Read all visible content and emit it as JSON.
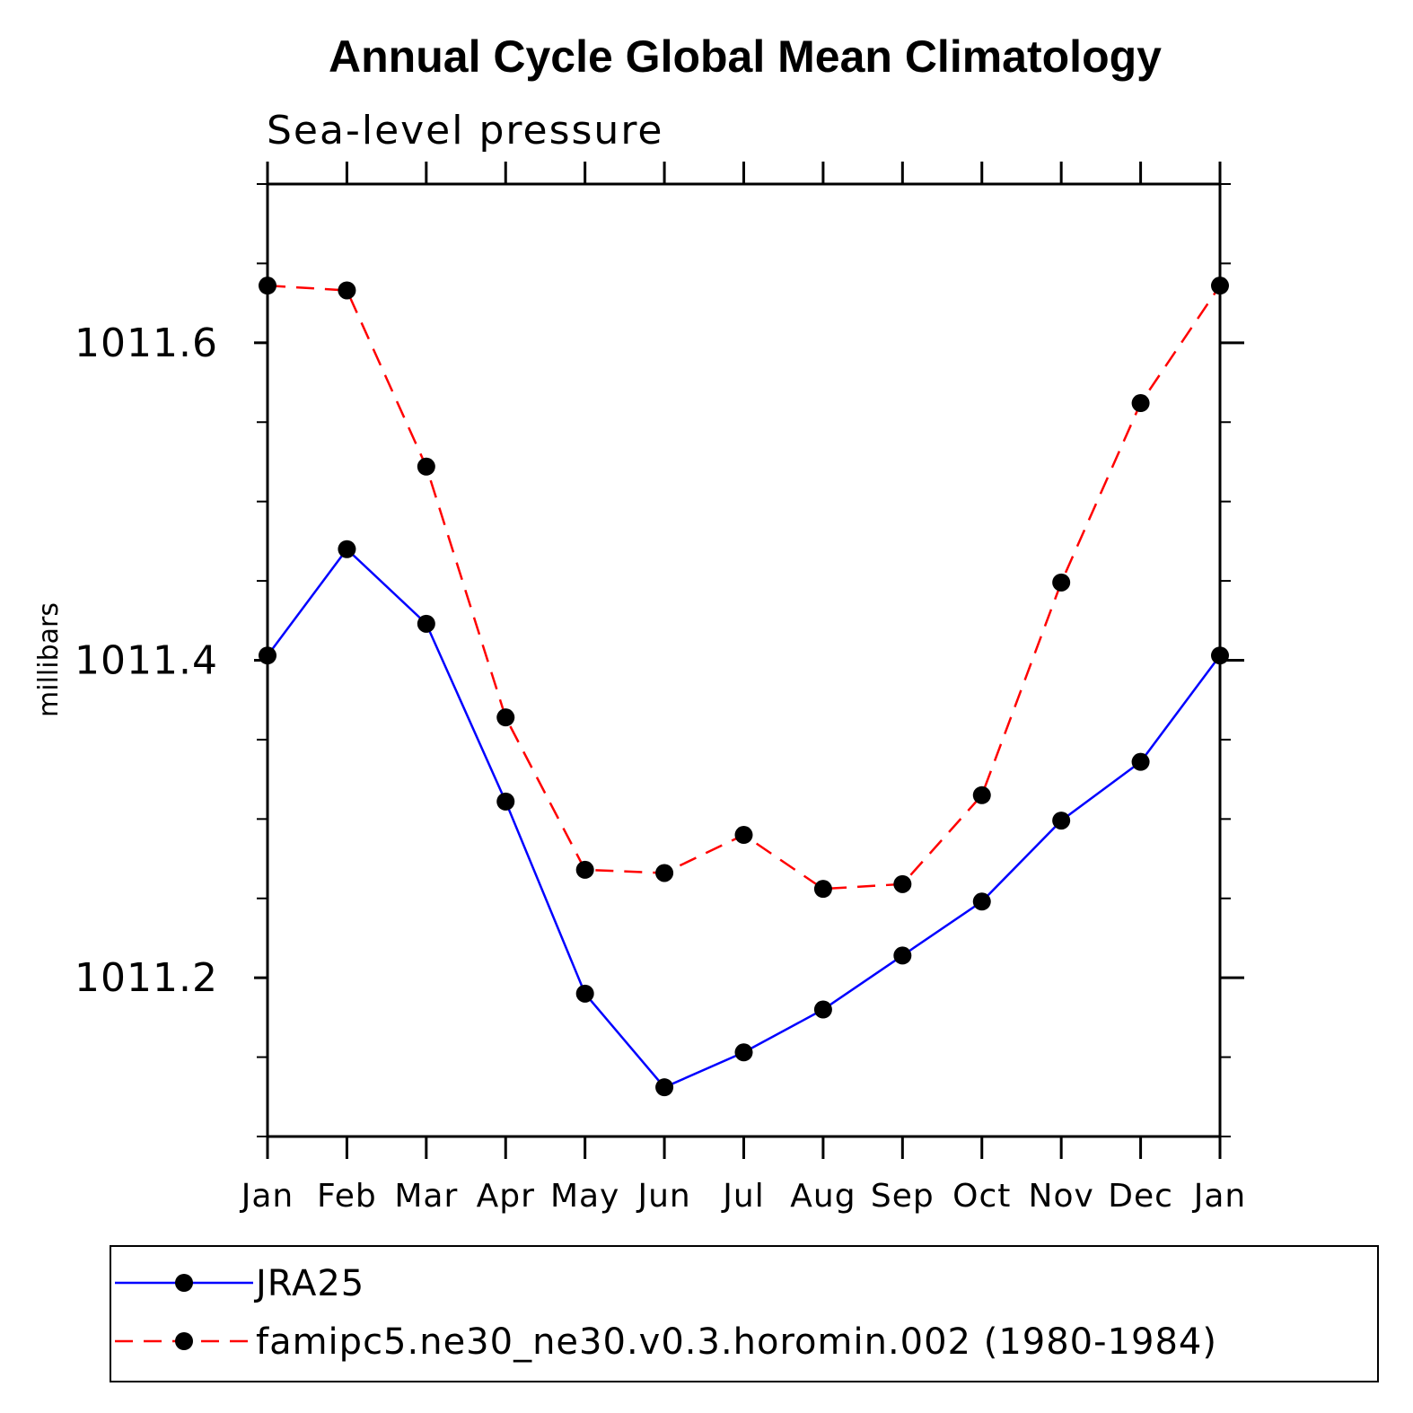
{
  "chart_data": {
    "type": "line",
    "title": "Annual Cycle Global Mean Climatology",
    "subtitle": "Sea-level pressure",
    "xlabel": "",
    "ylabel": "millibars",
    "categories": [
      "Jan",
      "Feb",
      "Mar",
      "Apr",
      "May",
      "Jun",
      "Jul",
      "Aug",
      "Sep",
      "Oct",
      "Nov",
      "Dec",
      "Jan"
    ],
    "ylim": [
      1011.1,
      1011.7
    ],
    "yticks_major": [
      1011.2,
      1011.4,
      1011.6
    ],
    "yticks_major_labels": [
      "1011.2",
      "1011.4",
      "1011.6"
    ],
    "yticks_minor": [
      1011.1,
      1011.15,
      1011.25,
      1011.3,
      1011.35,
      1011.45,
      1011.5,
      1011.55,
      1011.65,
      1011.7
    ],
    "grid": false,
    "legend_position": "bottom",
    "series": [
      {
        "name": "JRA25",
        "color": "#0000ff",
        "dash": "solid",
        "marker": "filled-circle",
        "values": [
          1011.403,
          1011.47,
          1011.423,
          1011.311,
          1011.19,
          1011.131,
          1011.153,
          1011.18,
          1011.214,
          1011.248,
          1011.299,
          1011.336,
          1011.403
        ]
      },
      {
        "name": "famipc5.ne30_ne30.v0.3.horomin.002 (1980-1984)",
        "color": "#ff0000",
        "dash": "dashed",
        "marker": "filled-circle",
        "values": [
          1011.636,
          1011.633,
          1011.522,
          1011.364,
          1011.268,
          1011.266,
          1011.29,
          1011.256,
          1011.259,
          1011.315,
          1011.449,
          1011.562,
          1011.636
        ]
      }
    ]
  }
}
